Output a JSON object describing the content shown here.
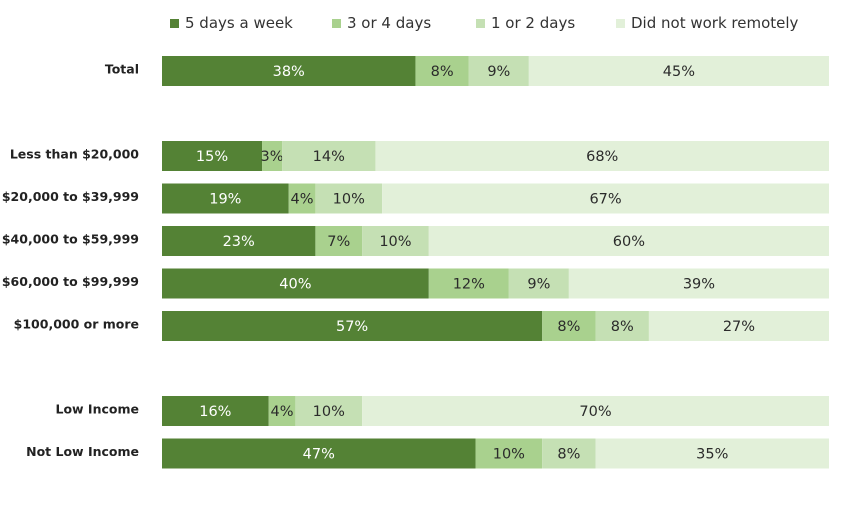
{
  "chart_data": {
    "type": "bar",
    "orientation": "horizontal",
    "stacked": true,
    "xlim": [
      0,
      100
    ],
    "grid": false,
    "legend_position": "top",
    "colors": [
      "#548235",
      "#a9d18e",
      "#c5e0b4",
      "#e2f0d9"
    ],
    "series": [
      {
        "name": "5 days a week",
        "color": "#548235"
      },
      {
        "name": "3 or 4 days",
        "color": "#a9d18e"
      },
      {
        "name": "1 or 2 days",
        "color": "#c5e0b4"
      },
      {
        "name": "Did not work remotely",
        "color": "#e2f0d9"
      }
    ],
    "groups": [
      {
        "rows": [
          {
            "label": "Total",
            "values": [
              38,
              8,
              9,
              45
            ]
          }
        ]
      },
      {
        "rows": [
          {
            "label": "Less than $20,000",
            "values": [
              15,
              3,
              14,
              68
            ]
          },
          {
            "label": "$20,000 to $39,999",
            "values": [
              19,
              4,
              10,
              67
            ]
          },
          {
            "label": "$40,000 to $59,999",
            "values": [
              23,
              7,
              10,
              60
            ]
          },
          {
            "label": "$60,000 to $99,999",
            "values": [
              40,
              12,
              9,
              39
            ]
          },
          {
            "label": "$100,000 or more",
            "values": [
              57,
              8,
              8,
              27
            ]
          }
        ]
      },
      {
        "rows": [
          {
            "label": "Low Income",
            "values": [
              16,
              4,
              10,
              70
            ]
          },
          {
            "label": "Not Low Income",
            "values": [
              47,
              10,
              8,
              35
            ]
          }
        ]
      }
    ]
  }
}
